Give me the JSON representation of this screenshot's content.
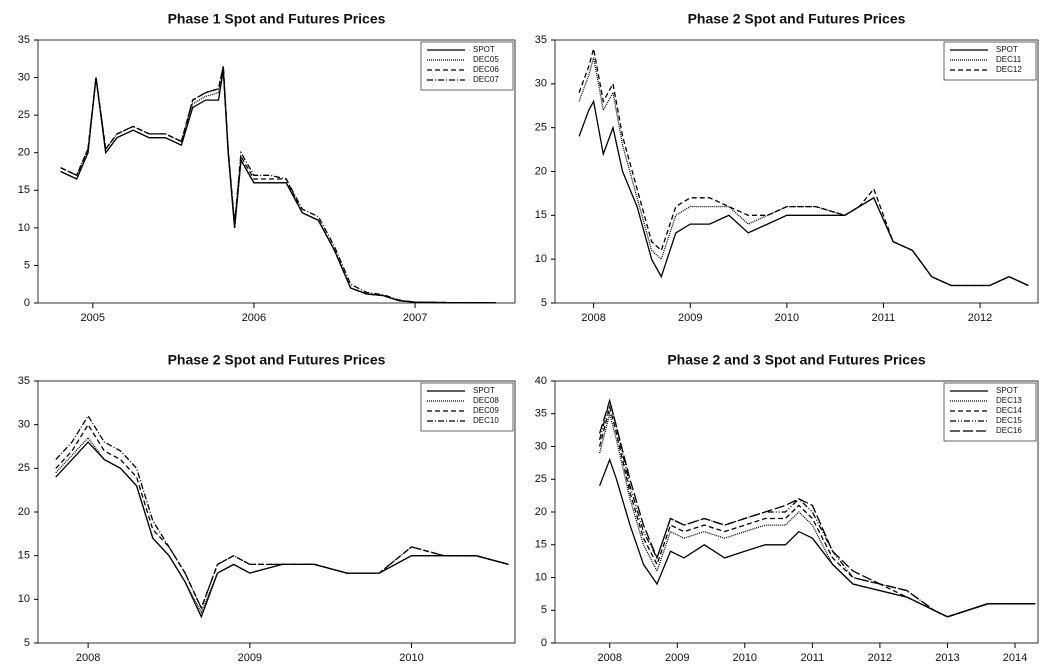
{
  "chart_data": [
    {
      "type": "line",
      "title": "Phase 1 Spot and Futures Prices",
      "x": [
        2004.8,
        2004.9,
        2004.97,
        2005.02,
        2005.08,
        2005.15,
        2005.25,
        2005.35,
        2005.45,
        2005.55,
        2005.62,
        2005.7,
        2005.78,
        2005.81,
        2005.84,
        2005.88,
        2005.92,
        2006.0,
        2006.1,
        2006.2,
        2006.3,
        2006.4,
        2006.5,
        2006.6,
        2006.7,
        2006.8,
        2006.9,
        2007.0,
        2007.2,
        2007.5
      ],
      "series": [
        {
          "name": "SPOT",
          "color": "#000000",
          "dash": "solid",
          "values": [
            17.5,
            16.5,
            20,
            30,
            20,
            22,
            23,
            22,
            22,
            21,
            26,
            27,
            27,
            31,
            20,
            10,
            19,
            16,
            16,
            16,
            12,
            11,
            7,
            2,
            1.2,
            1.0,
            0.3,
            0.1,
            0.05,
            0.02
          ]
        },
        {
          "name": "DEC05",
          "color": "#000000",
          "dash": "dotted",
          "values": [
            17.5,
            16.5,
            20,
            30,
            20,
            22,
            23,
            22,
            22,
            21,
            26.5,
            27.5,
            28,
            31,
            20,
            10,
            19,
            16,
            16,
            16,
            12,
            11,
            7,
            2,
            1.2,
            1.0,
            0.3,
            0.1,
            0.05,
            0.02
          ]
        },
        {
          "name": "DEC06",
          "color": "#000000",
          "dash": "dashed",
          "values": [
            18,
            17,
            20.5,
            30,
            20.5,
            22.5,
            23.5,
            22.5,
            22.5,
            21.5,
            27,
            28,
            28.5,
            31.5,
            20,
            10.5,
            19.5,
            16.5,
            16.5,
            16.5,
            12,
            11,
            7,
            2,
            1.2,
            1.0,
            0.3,
            0.1,
            0.05,
            0.02
          ]
        },
        {
          "name": "DEC07",
          "color": "#000000",
          "dash": "dashdot",
          "values": [
            18,
            17,
            20.5,
            30,
            20.5,
            22.5,
            23.5,
            22.5,
            22.5,
            21.5,
            27,
            28,
            28.5,
            31.5,
            20.5,
            10.5,
            20,
            17,
            17,
            16.5,
            12.5,
            11.5,
            7.5,
            2.5,
            1.4,
            1.1,
            0.4,
            0.1,
            0.05,
            0.02
          ]
        }
      ],
      "xlim": [
        2004.66,
        2007.62
      ],
      "xticks": [
        2005,
        2006,
        2007
      ],
      "ylim": [
        0,
        35
      ],
      "yticks": [
        0,
        5,
        10,
        15,
        20,
        25,
        30,
        35
      ],
      "legend": "upper right"
    },
    {
      "type": "line",
      "title": "Phase 2 Spot and Futures Prices",
      "x": [
        2007.85,
        2007.95,
        2008.0,
        2008.1,
        2008.2,
        2008.3,
        2008.45,
        2008.6,
        2008.7,
        2008.85,
        2009.0,
        2009.2,
        2009.4,
        2009.6,
        2009.8,
        2010.0,
        2010.3,
        2010.6,
        2010.75,
        2010.9,
        2011.1,
        2011.3,
        2011.5,
        2011.7,
        2011.9,
        2012.1,
        2012.3,
        2012.5
      ],
      "series": [
        {
          "name": "SPOT",
          "color": "#000000",
          "dash": "solid",
          "values": [
            24,
            27,
            28,
            22,
            25,
            20,
            16,
            10,
            8,
            13,
            14,
            14,
            15,
            13,
            14,
            15,
            15,
            15,
            16,
            17,
            12,
            11,
            8,
            7,
            7,
            7,
            8,
            7
          ]
        },
        {
          "name": "DEC11",
          "color": "#000000",
          "dash": "dotted",
          "values": [
            28,
            31,
            33,
            27,
            29,
            23,
            17,
            11,
            10,
            15,
            16,
            16,
            16,
            14,
            15,
            16,
            16,
            15,
            16,
            17,
            12,
            11,
            8,
            7,
            7,
            7,
            8,
            7
          ]
        },
        {
          "name": "DEC12",
          "color": "#000000",
          "dash": "dashed",
          "values": [
            29,
            32,
            34,
            28,
            30,
            24,
            18,
            12,
            11,
            16,
            17,
            17,
            16,
            15,
            15,
            16,
            16,
            15,
            16,
            18,
            12,
            11,
            8,
            7,
            7,
            7,
            8,
            7
          ]
        }
      ],
      "xlim": [
        2007.6,
        2012.6
      ],
      "xticks": [
        2008,
        2009,
        2010,
        2011,
        2012
      ],
      "ylim": [
        5,
        35
      ],
      "yticks": [
        5,
        10,
        15,
        20,
        25,
        30,
        35
      ],
      "legend": "upper right"
    },
    {
      "type": "line",
      "title": "Phase 2 Spot and Futures Prices",
      "x": [
        2007.8,
        2007.9,
        2008.0,
        2008.1,
        2008.2,
        2008.3,
        2008.4,
        2008.5,
        2008.6,
        2008.7,
        2008.8,
        2008.9,
        2009.0,
        2009.2,
        2009.4,
        2009.6,
        2009.8,
        2010.0,
        2010.2,
        2010.4,
        2010.6
      ],
      "series": [
        {
          "name": "SPOT",
          "color": "#000000",
          "dash": "solid",
          "values": [
            24,
            26,
            28,
            26,
            25,
            23,
            17,
            15,
            12,
            8,
            13,
            14,
            13,
            14,
            14,
            13,
            13,
            15,
            15,
            15,
            14
          ]
        },
        {
          "name": "DEC08",
          "color": "#000000",
          "dash": "dotted",
          "values": [
            24.5,
            26.5,
            28.5,
            26,
            25,
            23,
            17,
            15,
            12,
            8.5,
            13,
            14,
            13,
            14,
            14,
            13,
            13,
            15,
            15,
            15,
            14
          ]
        },
        {
          "name": "DEC09",
          "color": "#000000",
          "dash": "dashed",
          "values": [
            25,
            27,
            30,
            27,
            26,
            24,
            18,
            16,
            13,
            9,
            14,
            15,
            14,
            14,
            14,
            13,
            13,
            16,
            15,
            15,
            14
          ]
        },
        {
          "name": "DEC10",
          "color": "#000000",
          "dash": "dashdot",
          "values": [
            26,
            28,
            31,
            28,
            27,
            25,
            19,
            16,
            13,
            9,
            14,
            15,
            14,
            14,
            14,
            13,
            13,
            16,
            15,
            15,
            14
          ]
        }
      ],
      "xlim": [
        2007.69,
        2010.64
      ],
      "xticks": [
        2008,
        2009,
        2010
      ],
      "ylim": [
        5,
        35
      ],
      "yticks": [
        5,
        10,
        15,
        20,
        25,
        30,
        35
      ],
      "legend": "upper right"
    },
    {
      "type": "line",
      "title": "Phase 2 and 3 Spot and Futures Prices",
      "x": [
        2007.85,
        2008.0,
        2008.1,
        2008.3,
        2008.5,
        2008.7,
        2008.9,
        2009.1,
        2009.4,
        2009.7,
        2010.0,
        2010.3,
        2010.6,
        2010.8,
        2011.0,
        2011.3,
        2011.6,
        2012.0,
        2012.4,
        2012.8,
        2013.0,
        2013.3,
        2013.6,
        2014.0,
        2014.3
      ],
      "series": [
        {
          "name": "SPOT",
          "color": "#000000",
          "dash": "solid",
          "values": [
            24,
            28,
            25,
            18,
            12,
            9,
            14,
            13,
            15,
            13,
            14,
            15,
            15,
            17,
            16,
            12,
            9,
            8,
            7,
            5,
            4,
            5,
            6,
            6,
            6
          ]
        },
        {
          "name": "DEC13",
          "color": "#000000",
          "dash": "dotted",
          "values": [
            29,
            35,
            31,
            22,
            15,
            11,
            17,
            16,
            17,
            16,
            17,
            18,
            18,
            20,
            18,
            12,
            9,
            8,
            7,
            5,
            4,
            5,
            6,
            6,
            6
          ]
        },
        {
          "name": "DEC14",
          "color": "#000000",
          "dash": "dashed",
          "values": [
            30,
            36,
            32,
            23,
            16,
            12,
            18,
            17,
            18,
            17,
            18,
            19,
            19,
            21,
            19,
            13,
            10,
            9,
            7,
            5,
            4,
            5,
            6,
            6,
            6
          ]
        },
        {
          "name": "DEC15",
          "color": "#000000",
          "dash": "dashdotdot",
          "values": [
            31,
            37,
            33,
            24,
            17,
            13,
            19,
            18,
            19,
            18,
            19,
            20,
            20,
            22,
            20,
            14,
            10,
            9,
            8,
            5,
            4,
            5,
            6,
            6,
            6
          ]
        },
        {
          "name": "DEC16",
          "color": "#000000",
          "dash": "longdash",
          "values": [
            32,
            37,
            33,
            25,
            18,
            13,
            19,
            18,
            19,
            18,
            19,
            20,
            21,
            22,
            21,
            14,
            11,
            9,
            8,
            5,
            4,
            5,
            6,
            6,
            6
          ]
        }
      ],
      "xlim": [
        2007.19,
        2014.34
      ],
      "xticks": [
        2008,
        2009,
        2010,
        2011,
        2012,
        2013,
        2014
      ],
      "ylim": [
        0,
        40
      ],
      "yticks": [
        0,
        5,
        10,
        15,
        20,
        25,
        30,
        35,
        40
      ],
      "legend": "upper right"
    }
  ]
}
